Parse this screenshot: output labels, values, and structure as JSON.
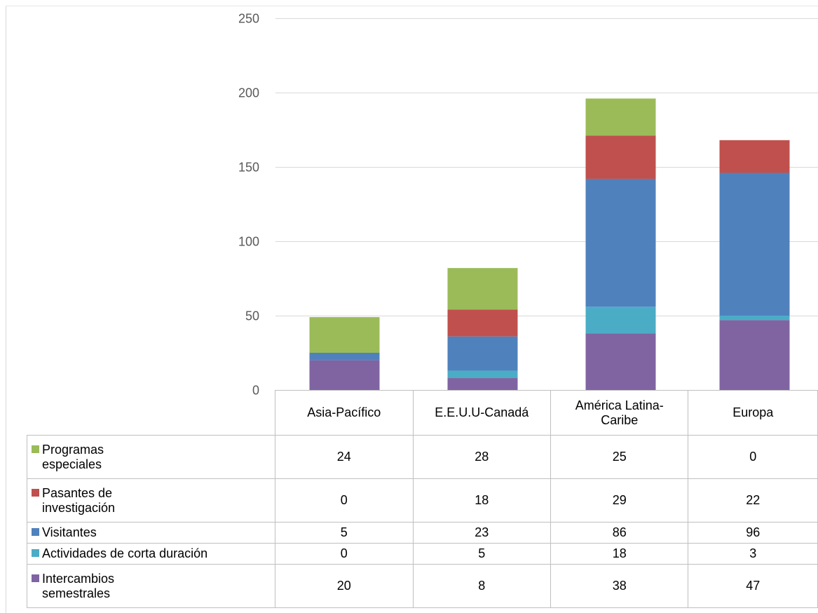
{
  "chart_data": {
    "type": "bar",
    "stacked": true,
    "categories": [
      "Asia-Pacífico",
      "E.E.U.U-Canadá",
      "América Latina-Caribe",
      "Europa"
    ],
    "series": [
      {
        "name": "Intercambios semestrales",
        "color": "#8064a2",
        "values": [
          20,
          8,
          38,
          47
        ]
      },
      {
        "name": "Actividades de corta duración",
        "color": "#4bacc6",
        "values": [
          0,
          5,
          18,
          3
        ]
      },
      {
        "name": "Visitantes",
        "color": "#4f81bd",
        "values": [
          5,
          23,
          86,
          96
        ]
      },
      {
        "name": "Pasantes de investigación",
        "color": "#c0504d",
        "values": [
          0,
          18,
          29,
          22
        ]
      },
      {
        "name": "Programas especiales",
        "color": "#9bbb59",
        "values": [
          24,
          28,
          25,
          0
        ]
      }
    ],
    "ylim": [
      0,
      250
    ],
    "yticks": [
      0,
      50,
      100,
      150,
      200,
      250
    ],
    "grid": true,
    "legend": "data-table"
  },
  "table": {
    "headers": [
      "Asia-Pacífico",
      "E.E.U.U-Canadá",
      "América Latina-\nCaribe",
      "Europa"
    ],
    "rows": [
      {
        "label": "Programas\n especiales",
        "color": "#9bbb59",
        "values": [
          "24",
          "28",
          "25",
          "0"
        ]
      },
      {
        "label": " Pasantes de\ninvestigación",
        "color": "#c0504d",
        "values": [
          "0",
          "18",
          "29",
          "22"
        ]
      },
      {
        "label": "Visitantes",
        "color": "#4f81bd",
        "values": [
          "5",
          "23",
          "86",
          "96"
        ]
      },
      {
        "label": "Actividades de corta duración",
        "color": "#4bacc6",
        "values": [
          "0",
          "5",
          "18",
          "3"
        ]
      },
      {
        "label": "Intercambios\n semestrales",
        "color": "#8064a2",
        "values": [
          "20",
          "8",
          "38",
          "47"
        ]
      }
    ]
  }
}
